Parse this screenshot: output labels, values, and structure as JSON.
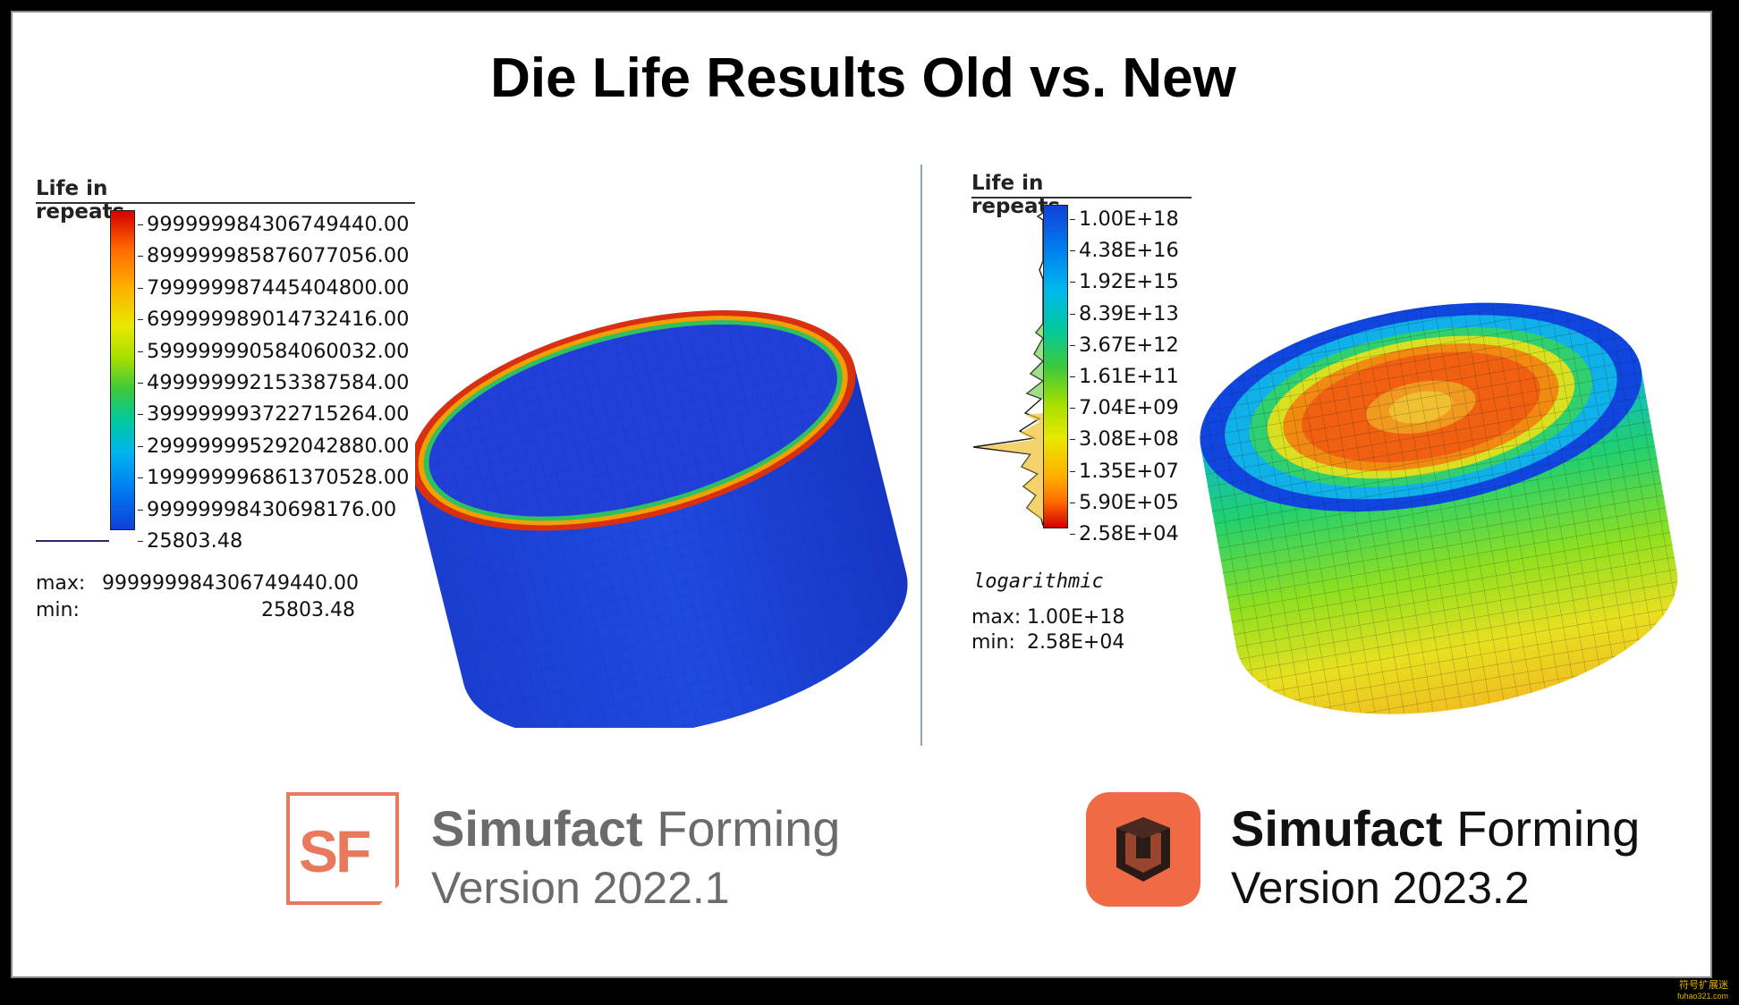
{
  "title": "Die Life Results Old vs. New",
  "left": {
    "legend_title": "Life in repeats",
    "ticks": [
      "999999984306749440.00",
      "899999985876077056.00",
      "799999987445404800.00",
      "699999989014732416.00",
      "599999990584060032.00",
      "499999992153387584.00",
      "399999993722715264.00",
      "299999995292042880.00",
      "199999996861370528.00",
      "99999998430698176.00",
      "25803.48"
    ],
    "max_label": "max:",
    "max_value": "999999984306749440.00",
    "min_label": "min:",
    "min_value": "25803.48"
  },
  "right": {
    "legend_title": "Life in repeats",
    "ticks": [
      "1.00E+18",
      "4.38E+16",
      "1.92E+15",
      "8.39E+13",
      "3.67E+12",
      "1.61E+11",
      "7.04E+09",
      "3.08E+08",
      "1.35E+07",
      "5.90E+05",
      "2.58E+04"
    ],
    "scale_note": "logarithmic",
    "max_label": "max:",
    "max_value": "1.00E+18",
    "min_label": "min:",
    "min_value": "2.58E+04"
  },
  "brand_old": {
    "name_bold": "Simufact",
    "name_light": "Forming",
    "version": "Version 2022.1",
    "logo_text": "SF"
  },
  "brand_new": {
    "name_bold": "Simufact",
    "name_light": "Forming",
    "version": "Version 2023.2"
  },
  "watermark": {
    "line1": "符号扩展迷",
    "line2": "fuhao321.com"
  },
  "colors": {
    "old_brand_orange": "#e8795a",
    "new_brand_orange": "#f06a45",
    "text_gray": "#6b6b6b"
  }
}
